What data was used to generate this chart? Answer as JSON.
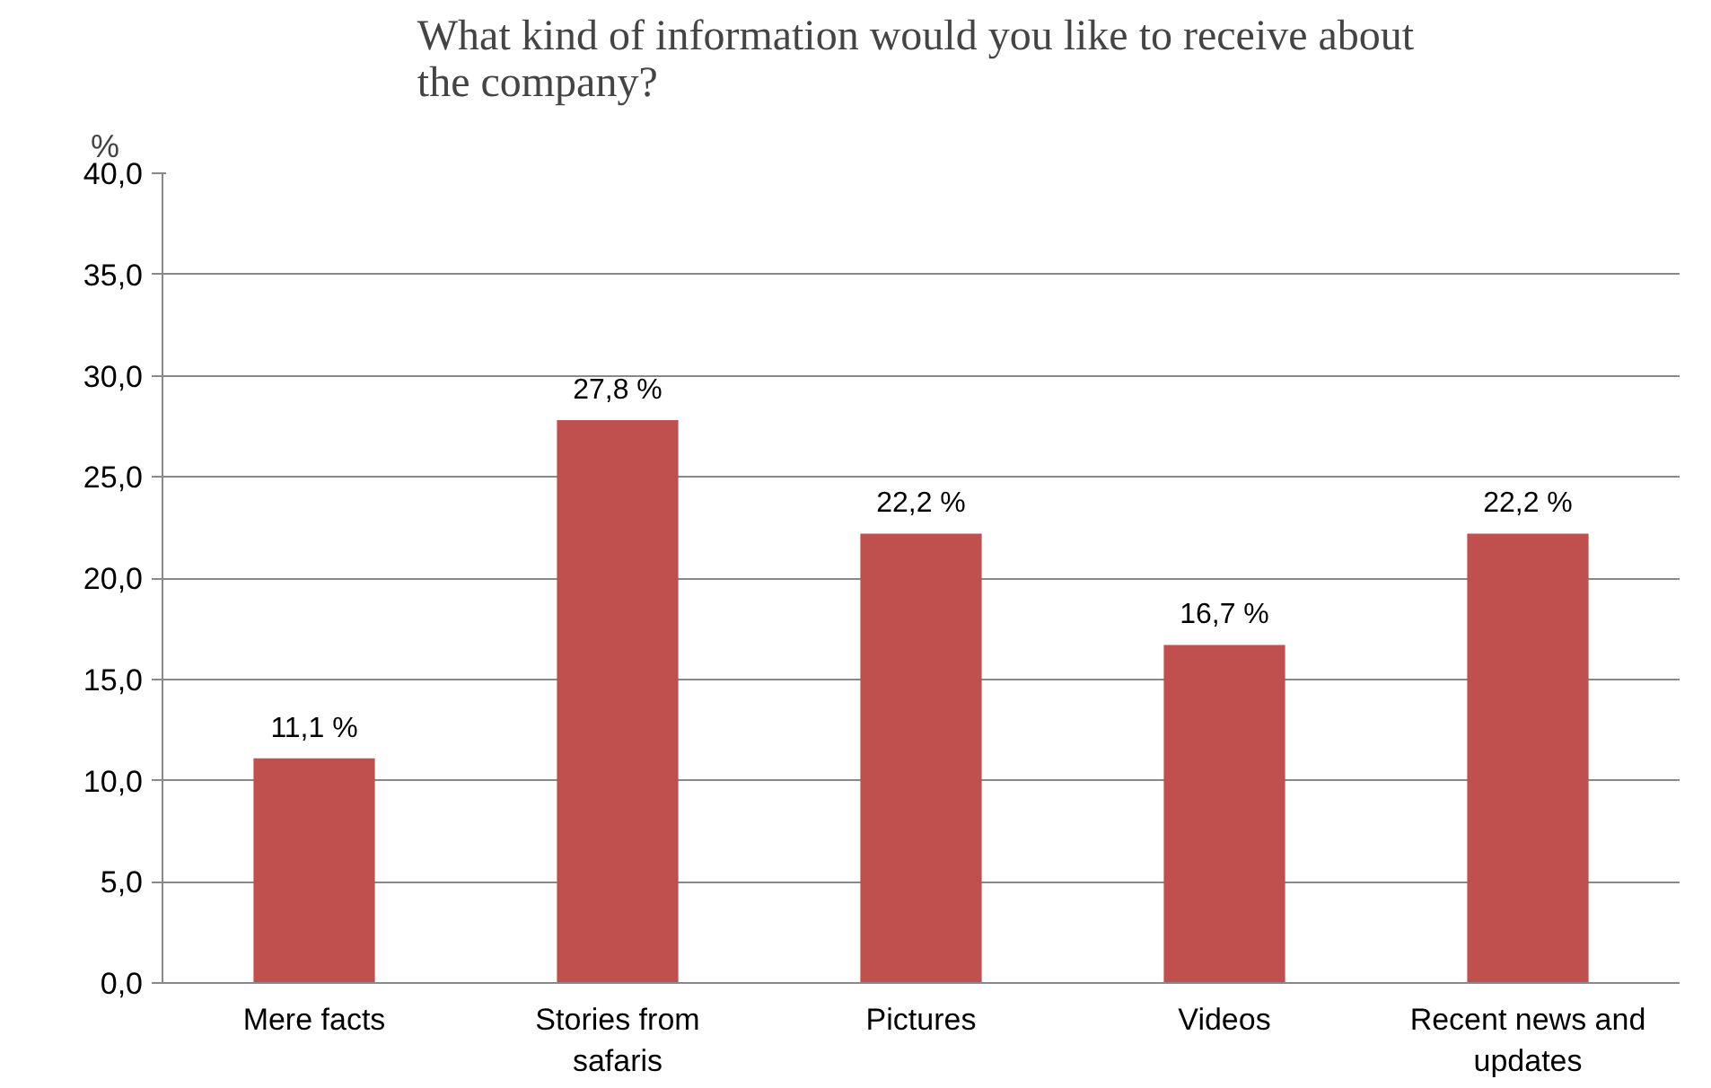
{
  "chart_data": {
    "type": "bar",
    "title": "What kind of  information would you like to receive about the company?",
    "ylabel": "%",
    "categories": [
      "Mere facts",
      "Stories from safaris",
      "Pictures",
      "Videos",
      "Recent news and updates"
    ],
    "values": [
      11.1,
      27.8,
      22.2,
      16.7,
      22.2
    ],
    "value_labels": [
      "11,1 %",
      "27,8 %",
      "22,2 %",
      "16,7 %",
      "22,2 %"
    ],
    "color": "#c0504d",
    "ylim": [
      0,
      40
    ],
    "yticks": [
      {
        "value": 0,
        "label": "0,0"
      },
      {
        "value": 5,
        "label": "5,0"
      },
      {
        "value": 10,
        "label": "10,0"
      },
      {
        "value": 15,
        "label": "15,0"
      },
      {
        "value": 20,
        "label": "20,0"
      },
      {
        "value": 25,
        "label": "25,0"
      },
      {
        "value": 30,
        "label": "30,0"
      },
      {
        "value": 35,
        "label": "35,0"
      },
      {
        "value": 40,
        "label": "40,0"
      }
    ],
    "grid": "y"
  }
}
